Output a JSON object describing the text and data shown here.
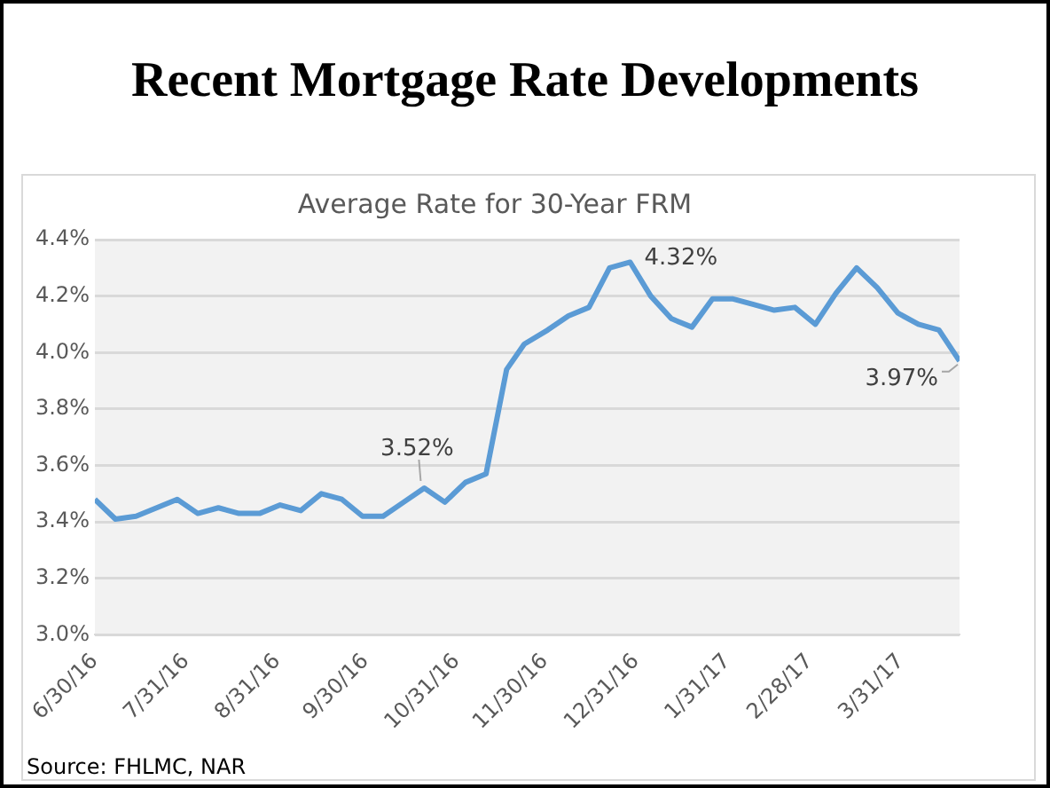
{
  "chart_data": {
    "type": "line",
    "title": "Recent Mortgage Rate Developments",
    "subtitle": "Average Rate for 30-Year FRM",
    "x": [
      "2016-06-30",
      "2016-07-07",
      "2016-07-14",
      "2016-07-21",
      "2016-07-28",
      "2016-08-04",
      "2016-08-11",
      "2016-08-18",
      "2016-08-25",
      "2016-09-01",
      "2016-09-08",
      "2016-09-15",
      "2016-09-22",
      "2016-09-29",
      "2016-10-06",
      "2016-10-13",
      "2016-10-20",
      "2016-10-27",
      "2016-11-03",
      "2016-11-10",
      "2016-11-17",
      "2016-11-23",
      "2016-12-01",
      "2016-12-08",
      "2016-12-15",
      "2016-12-22",
      "2016-12-29",
      "2017-01-05",
      "2017-01-12",
      "2017-01-19",
      "2017-01-26",
      "2017-02-02",
      "2017-02-09",
      "2017-02-16",
      "2017-02-23",
      "2017-03-02",
      "2017-03-09",
      "2017-03-16",
      "2017-03-23",
      "2017-03-30",
      "2017-04-06",
      "2017-04-13",
      "2017-04-20"
    ],
    "series": [
      {
        "color": "#5b9bd5",
        "values": [
          3.48,
          3.41,
          3.42,
          3.45,
          3.48,
          3.43,
          3.45,
          3.43,
          3.43,
          3.46,
          3.44,
          3.5,
          3.48,
          3.42,
          3.42,
          3.47,
          3.52,
          3.47,
          3.54,
          3.57,
          3.94,
          4.03,
          4.08,
          4.13,
          4.16,
          4.3,
          4.32,
          4.2,
          4.12,
          4.09,
          4.19,
          4.19,
          4.17,
          4.15,
          4.16,
          4.1,
          4.21,
          4.3,
          4.23,
          4.14,
          4.1,
          4.08,
          3.97
        ]
      }
    ],
    "xlim": [
      "2016-06-30",
      "2017-04-20"
    ],
    "xticks": [
      {
        "value": "2016-06-30",
        "label": "6/30/16"
      },
      {
        "value": "2016-07-31",
        "label": "7/31/16"
      },
      {
        "value": "2016-08-31",
        "label": "8/31/16"
      },
      {
        "value": "2016-09-30",
        "label": "9/30/16"
      },
      {
        "value": "2016-10-31",
        "label": "10/31/16"
      },
      {
        "value": "2016-11-30",
        "label": "11/30/16"
      },
      {
        "value": "2016-12-31",
        "label": "12/31/16"
      },
      {
        "value": "2017-01-31",
        "label": "1/31/17"
      },
      {
        "value": "2017-02-28",
        "label": "2/28/17"
      },
      {
        "value": "2017-03-31",
        "label": "3/31/17"
      }
    ],
    "ylim": [
      3.0,
      4.4
    ],
    "yticks": [
      {
        "value": 3.0,
        "label": "3.0%"
      },
      {
        "value": 3.2,
        "label": "3.2%"
      },
      {
        "value": 3.4,
        "label": "3.4%"
      },
      {
        "value": 3.6,
        "label": "3.6%"
      },
      {
        "value": 3.8,
        "label": "3.8%"
      },
      {
        "value": 4.0,
        "label": "4.0%"
      },
      {
        "value": 4.2,
        "label": "4.2%"
      },
      {
        "value": 4.4,
        "label": "4.4%"
      }
    ],
    "grid": "y",
    "marker": "none",
    "line_style": "solid",
    "annotations": [
      {
        "text": "3.52%",
        "x": "2016-10-20",
        "y": 3.52
      },
      {
        "text": "4.32%",
        "x": "2016-12-29",
        "y": 4.32
      },
      {
        "text": "3.97%",
        "x": "2017-04-20",
        "y": 3.97
      },
      "Source: FHLMC, NAR"
    ]
  }
}
